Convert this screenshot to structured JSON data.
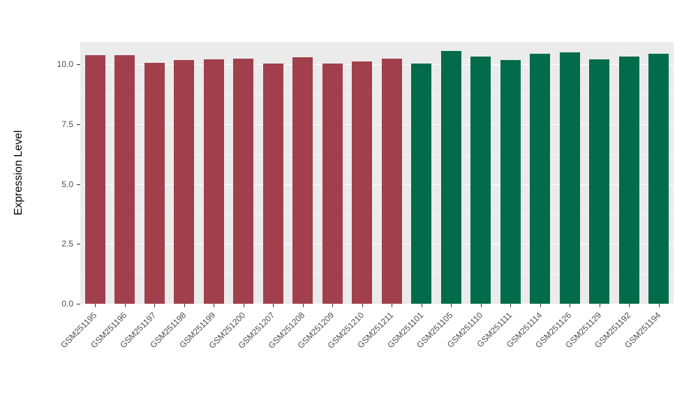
{
  "chart_data": {
    "type": "bar",
    "title": "",
    "xlabel": "",
    "ylabel": "Expression Level",
    "ylim": [
      0,
      10.94
    ],
    "y_ticks": [
      0,
      2.5,
      5,
      7.5,
      10
    ],
    "y_tick_labels": [
      "0.0",
      "2.5",
      "5.0",
      "7.5",
      "10.0"
    ],
    "grid": "major-and-minor-white-on-gray",
    "legend": "none",
    "panel_bg": "#EBEBEB",
    "bar_width_fraction": 0.68,
    "group_colors": [
      "#A13F4C",
      "#026B4A"
    ],
    "categories": [
      "GSM251195",
      "GSM251196",
      "GSM251197",
      "GSM251198",
      "GSM251199",
      "GSM251200",
      "GSM251207",
      "GSM251208",
      "GSM251209",
      "GSM251210",
      "GSM251211",
      "GSM251101",
      "GSM251105",
      "GSM251110",
      "GSM251111",
      "GSM251114",
      "GSM251126",
      "GSM251129",
      "GSM251192",
      "GSM251194"
    ],
    "values": [
      10.4,
      10.38,
      10.08,
      10.18,
      10.22,
      10.25,
      10.04,
      10.3,
      10.04,
      10.13,
      10.24,
      10.04,
      10.56,
      10.33,
      10.18,
      10.46,
      10.5,
      10.21,
      10.33,
      10.46
    ],
    "groups": [
      0,
      0,
      0,
      0,
      0,
      0,
      0,
      0,
      0,
      0,
      0,
      1,
      1,
      1,
      1,
      1,
      1,
      1,
      1,
      1
    ]
  }
}
